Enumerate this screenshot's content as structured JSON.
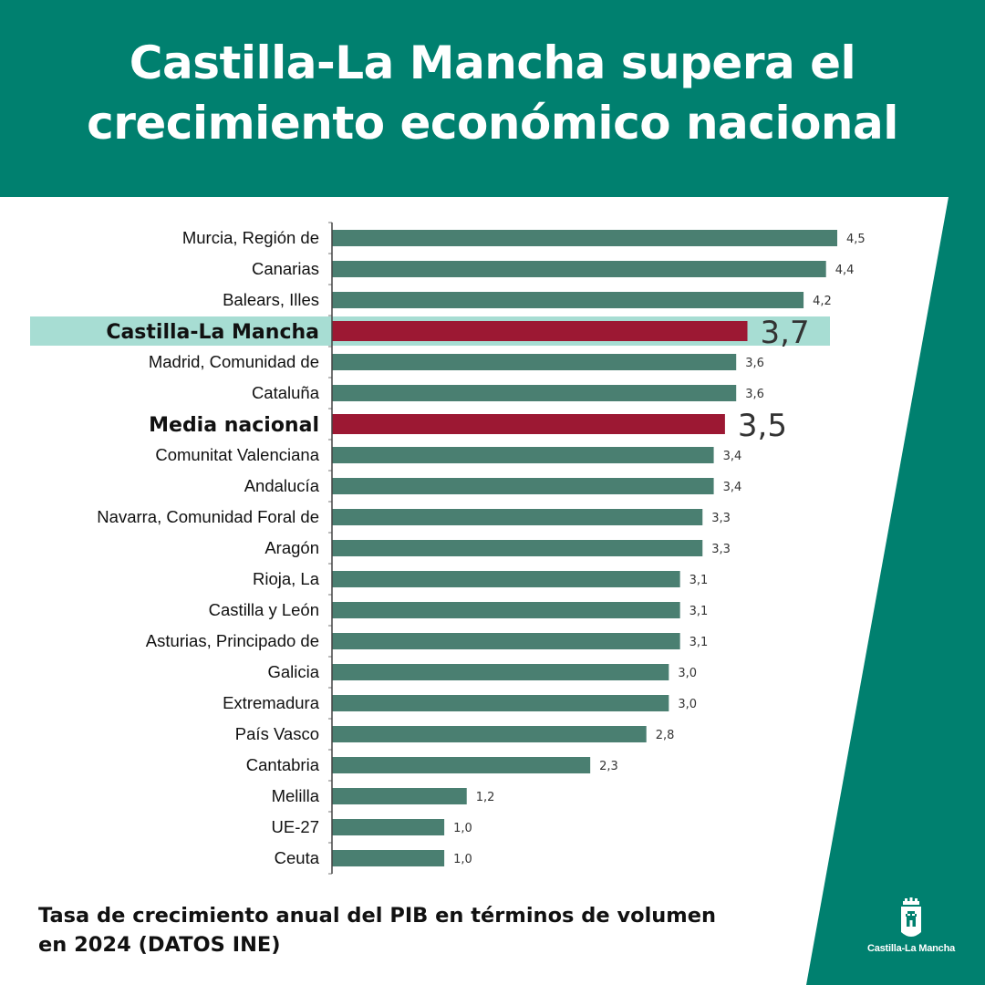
{
  "header": {
    "title": "Castilla-La Mancha supera el crecimiento económico nacional"
  },
  "caption": {
    "line1": "Tasa de crecimiento anual del PIB en términos de volumen",
    "line2": "en 2024 (DATOS INE)"
  },
  "logo": {
    "text": "Castilla-La Mancha",
    "icon": "castle-crest-icon"
  },
  "colors": {
    "brand": "#00806f",
    "bar": "#4a7f71",
    "highlight_bar": "#9c1833",
    "highlight_band": "#a7ddd3"
  },
  "chart_data": {
    "type": "bar",
    "orientation": "horizontal",
    "categories": [
      "Murcia, Región de",
      "Canarias",
      "Balears, Illes",
      "Castilla-La Mancha",
      "Madrid, Comunidad de",
      "Cataluña",
      "Media nacional",
      "Comunitat Valenciana",
      "Andalucía",
      "Navarra, Comunidad Foral de",
      "Aragón",
      "Rioja, La",
      "Castilla y León",
      "Asturias, Principado de",
      "Galicia",
      "Extremadura",
      "País Vasco",
      "Cantabria",
      "Melilla",
      "UE-27",
      "Ceuta"
    ],
    "values": [
      4.5,
      4.4,
      4.2,
      3.7,
      3.6,
      3.6,
      3.5,
      3.4,
      3.4,
      3.3,
      3.3,
      3.1,
      3.1,
      3.1,
      3.0,
      3.0,
      2.8,
      2.3,
      1.2,
      1.0,
      1.0
    ],
    "value_labels": [
      "4,5",
      "4,4",
      "4,2",
      "3,7",
      "3,6",
      "3,6",
      "3,5",
      "3,4",
      "3,4",
      "3,3",
      "3,3",
      "3,1",
      "3,1",
      "3,1",
      "3,0",
      "3,0",
      "2,8",
      "2,3",
      "1,2",
      "1,0",
      "1,0"
    ],
    "highlighted": [
      "Castilla-La Mancha",
      "Media nacional"
    ],
    "xlim": [
      0,
      4.5
    ],
    "grid": false,
    "title": "",
    "xlabel": "",
    "ylabel": ""
  }
}
